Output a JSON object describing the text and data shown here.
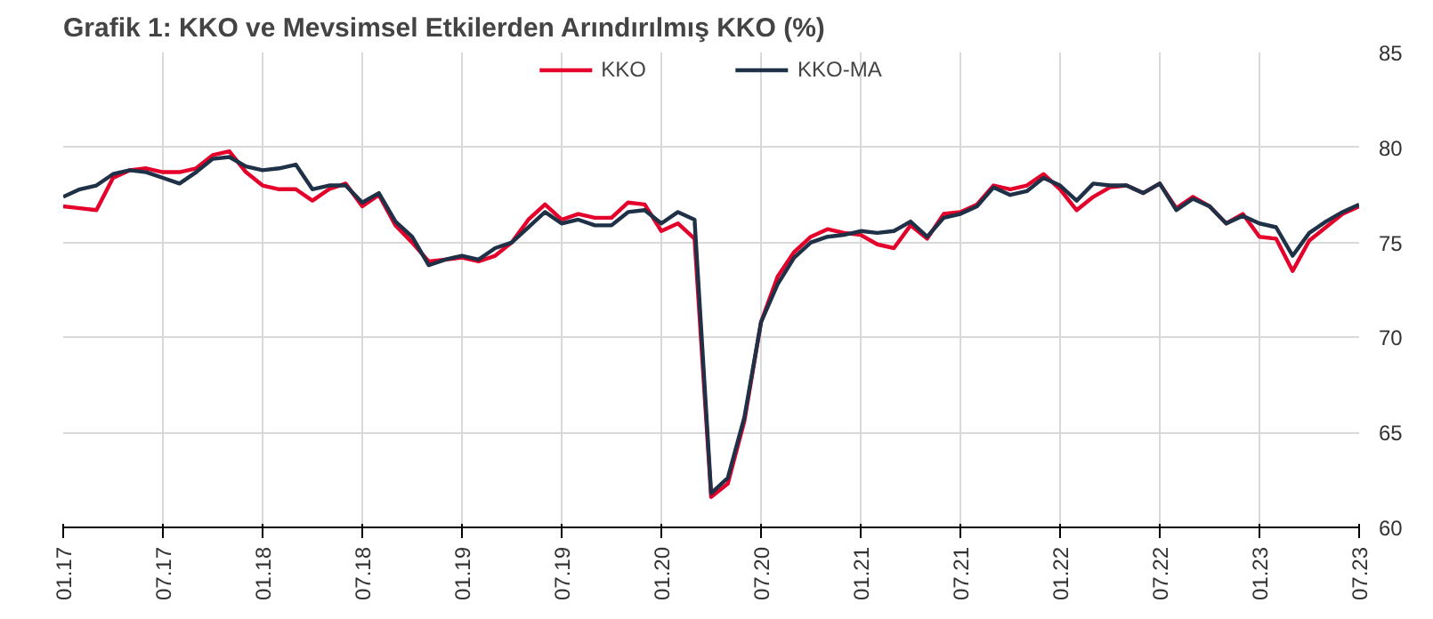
{
  "chart_data": {
    "type": "line",
    "title": "Grafik 1: KKO ve Mevsimsel Etkilerden Arındırılmış KKO (%)",
    "categories": [
      "01.17",
      null,
      null,
      null,
      null,
      null,
      "07.17",
      null,
      null,
      null,
      null,
      null,
      "01.18",
      null,
      null,
      null,
      null,
      null,
      "07.18",
      null,
      null,
      null,
      null,
      null,
      "01.19",
      null,
      null,
      null,
      null,
      null,
      "07.19",
      null,
      null,
      null,
      null,
      null,
      "01.20",
      null,
      null,
      null,
      null,
      null,
      "07.20",
      null,
      null,
      null,
      null,
      null,
      "01.21",
      null,
      null,
      null,
      null,
      null,
      "07.21",
      null,
      null,
      null,
      null,
      null,
      "01.22",
      null,
      null,
      null,
      null,
      null,
      "07.22",
      null,
      null,
      null,
      null,
      null,
      "01.23",
      null,
      null,
      null,
      null,
      null,
      "07.23"
    ],
    "series": [
      {
        "name": "KKO",
        "color": "#e4002b",
        "values": [
          76.9,
          76.8,
          76.7,
          78.4,
          78.8,
          78.9,
          78.7,
          78.7,
          78.9,
          79.6,
          79.8,
          78.7,
          78.0,
          77.8,
          77.8,
          77.2,
          77.8,
          78.1,
          76.9,
          77.5,
          75.9,
          75.0,
          74.0,
          74.1,
          74.2,
          74.0,
          74.3,
          75.0,
          76.2,
          77.0,
          76.2,
          76.5,
          76.3,
          76.3,
          77.1,
          77.0,
          75.6,
          76.0,
          75.2,
          61.6,
          62.3,
          65.6,
          70.8,
          73.2,
          74.5,
          75.3,
          75.7,
          75.5,
          75.4,
          74.9,
          74.7,
          75.9,
          75.2,
          76.5,
          76.6,
          77.0,
          78.0,
          77.8,
          78.0,
          78.6,
          77.8,
          76.7,
          77.4,
          77.9,
          78.0,
          77.6,
          78.1,
          76.8,
          77.4,
          76.9,
          76.0,
          76.5,
          75.3,
          75.2,
          73.5,
          75.1,
          75.8,
          76.5,
          76.9
        ]
      },
      {
        "name": "KKO-MA",
        "color": "#1f3147",
        "values": [
          77.4,
          77.8,
          78.0,
          78.6,
          78.8,
          78.7,
          78.4,
          78.1,
          78.7,
          79.4,
          79.5,
          79.0,
          78.8,
          78.9,
          79.1,
          77.8,
          78.0,
          78.0,
          77.1,
          77.6,
          76.1,
          75.3,
          73.8,
          74.1,
          74.3,
          74.1,
          74.7,
          75.0,
          75.8,
          76.6,
          76.0,
          76.2,
          75.9,
          75.9,
          76.6,
          76.7,
          76.0,
          76.6,
          76.2,
          61.8,
          62.6,
          65.8,
          70.8,
          72.8,
          74.2,
          75.0,
          75.3,
          75.4,
          75.6,
          75.5,
          75.6,
          76.1,
          75.3,
          76.3,
          76.5,
          76.9,
          77.9,
          77.5,
          77.7,
          78.4,
          78.0,
          77.2,
          78.1,
          78.0,
          78.0,
          77.6,
          78.1,
          76.7,
          77.3,
          76.9,
          76.0,
          76.4,
          76.0,
          75.8,
          74.3,
          75.5,
          76.1,
          76.6,
          77.0
        ]
      }
    ],
    "ylim": [
      60,
      85
    ],
    "yticks": [
      60,
      65,
      70,
      75,
      80,
      85
    ],
    "grid": true,
    "legend": "top",
    "marker": "none",
    "line_style": "solid"
  }
}
